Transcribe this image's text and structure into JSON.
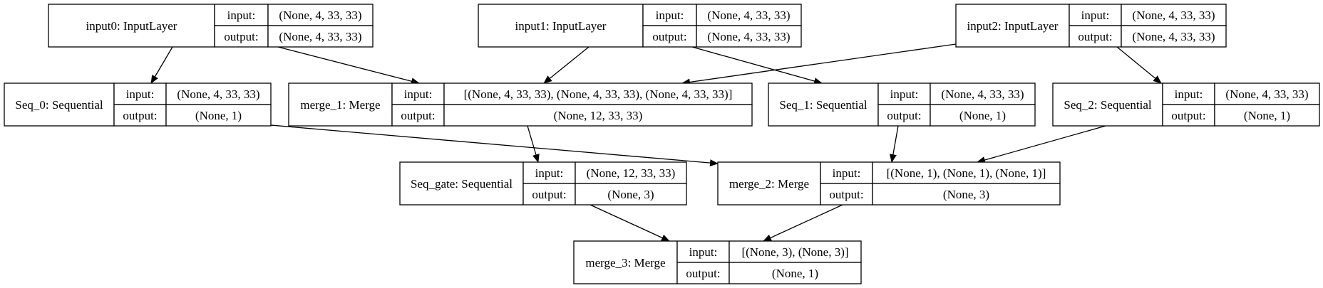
{
  "diagram": {
    "nodes": [
      {
        "id": "input0",
        "title": "input0: InputLayer",
        "input_label": "input:",
        "input": "(None, 4, 33, 33)",
        "output_label": "output:",
        "output": "(None, 4, 33, 33)"
      },
      {
        "id": "input1",
        "title": "input1: InputLayer",
        "input_label": "input:",
        "input": "(None, 4, 33, 33)",
        "output_label": "output:",
        "output": "(None, 4, 33, 33)"
      },
      {
        "id": "input2",
        "title": "input2: InputLayer",
        "input_label": "input:",
        "input": "(None, 4, 33, 33)",
        "output_label": "output:",
        "output": "(None, 4, 33, 33)"
      },
      {
        "id": "seq0",
        "title": "Seq_0: Sequential",
        "input_label": "input:",
        "input": "(None, 4, 33, 33)",
        "output_label": "output:",
        "output": "(None, 1)"
      },
      {
        "id": "merge1",
        "title": "merge_1: Merge",
        "input_label": "input:",
        "input": "[(None, 4, 33, 33), (None, 4, 33, 33), (None, 4, 33, 33)]",
        "output_label": "output:",
        "output": "(None, 12, 33, 33)"
      },
      {
        "id": "seq1",
        "title": "Seq_1: Sequential",
        "input_label": "input:",
        "input": "(None, 4, 33, 33)",
        "output_label": "output:",
        "output": "(None, 1)"
      },
      {
        "id": "seq2",
        "title": "Seq_2: Sequential",
        "input_label": "input:",
        "input": "(None, 4, 33, 33)",
        "output_label": "output:",
        "output": "(None, 1)"
      },
      {
        "id": "seqgate",
        "title": "Seq_gate: Sequential",
        "input_label": "input:",
        "input": "(None, 12, 33, 33)",
        "output_label": "output:",
        "output": "(None, 3)"
      },
      {
        "id": "merge2",
        "title": "merge_2: Merge",
        "input_label": "input:",
        "input": "[(None, 1), (None, 1), (None, 1)]",
        "output_label": "output:",
        "output": "(None, 3)"
      },
      {
        "id": "merge3",
        "title": "merge_3: Merge",
        "input_label": "input:",
        "input": "[(None, 3), (None, 3)]",
        "output_label": "output:",
        "output": "(None, 1)"
      }
    ],
    "edges": [
      {
        "from": "input0",
        "to": "seq0"
      },
      {
        "from": "input0",
        "to": "merge1"
      },
      {
        "from": "input1",
        "to": "merge1"
      },
      {
        "from": "input1",
        "to": "seq1"
      },
      {
        "from": "input2",
        "to": "merge1"
      },
      {
        "from": "input2",
        "to": "seq2"
      },
      {
        "from": "seq0",
        "to": "merge2"
      },
      {
        "from": "merge1",
        "to": "seqgate"
      },
      {
        "from": "seq1",
        "to": "merge2"
      },
      {
        "from": "seq2",
        "to": "merge2"
      },
      {
        "from": "seqgate",
        "to": "merge3"
      },
      {
        "from": "merge2",
        "to": "merge3"
      }
    ]
  }
}
